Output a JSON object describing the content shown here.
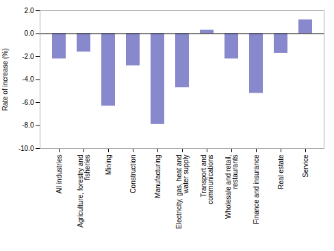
{
  "chart_data": {
    "type": "bar",
    "categories": [
      "All industries",
      "Agriculture, forestry and\nfisheries",
      "Mining",
      "Construction",
      "Manufacturing",
      "Electricity, gas, heat and\nwater supply",
      "Transport and\ncommunications",
      "Wholesale and retail,\nrestaurants",
      "Finance and insurance",
      "Real estate",
      "Service"
    ],
    "values": [
      -2.2,
      -1.6,
      -6.3,
      -2.8,
      -7.9,
      -4.7,
      0.3,
      -2.2,
      -5.2,
      -1.7,
      1.2
    ],
    "color": "#8888cc",
    "ylabel": "Rate of increase (%)",
    "ylim": [
      -10.0,
      2.0
    ],
    "yticks": [
      {
        "value": -10,
        "label": "-10.0"
      },
      {
        "value": -8,
        "label": "-8.0"
      },
      {
        "value": -6,
        "label": "-6.0"
      },
      {
        "value": -4,
        "label": "-4.0"
      },
      {
        "value": -2,
        "label": "-2.0"
      },
      {
        "value": 0,
        "label": "0.0"
      },
      {
        "value": 2,
        "label": "2.0"
      }
    ],
    "grid": false
  }
}
